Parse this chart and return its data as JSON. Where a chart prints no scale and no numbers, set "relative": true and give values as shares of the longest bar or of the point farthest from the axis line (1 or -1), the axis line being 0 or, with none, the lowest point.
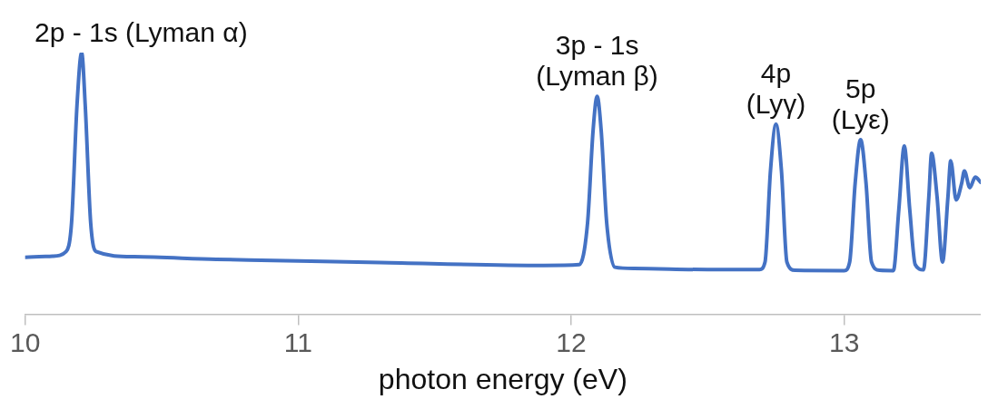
{
  "chart_data": {
    "type": "line",
    "relative": true,
    "xlabel": "photon energy (eV)",
    "xlim": [
      10,
      13.5
    ],
    "xticks": [
      10,
      11,
      12,
      13
    ],
    "grid": false,
    "legend": false,
    "marker": "none",
    "line_style": "solid",
    "series": [
      {
        "color": "#4472c4",
        "x": [
          10,
          10.1,
          10.15,
          10.17,
          10.19,
          10.207,
          10.22,
          10.24,
          10.26,
          10.4,
          10.7,
          10.91,
          11.3,
          11.9,
          12.03,
          12.06,
          12.08,
          12.095,
          12.11,
          12.13,
          12.16,
          12.23,
          12.5,
          12.69,
          12.71,
          12.73,
          12.75,
          12.77,
          12.79,
          12.82,
          13.0,
          13.02,
          13.04,
          13.06,
          13.08,
          13.1,
          13.13,
          13.18,
          13.2,
          13.22,
          13.24,
          13.26,
          13.29,
          13.31,
          13.32,
          13.34,
          13.36,
          13.38,
          13.39,
          13.41,
          13.43,
          13.44,
          13.46,
          13.48,
          13.5
        ],
        "values": [
          0.218,
          0.222,
          0.24,
          0.35,
          0.8,
          1.0,
          0.8,
          0.35,
          0.24,
          0.22,
          0.21,
          0.206,
          0.198,
          0.187,
          0.19,
          0.35,
          0.7,
          0.833,
          0.7,
          0.35,
          0.18,
          0.175,
          0.171,
          0.171,
          0.2,
          0.55,
          0.726,
          0.55,
          0.2,
          0.168,
          0.167,
          0.2,
          0.5,
          0.667,
          0.5,
          0.2,
          0.168,
          0.167,
          0.4,
          0.643,
          0.4,
          0.19,
          0.17,
          0.45,
          0.615,
          0.45,
          0.2,
          0.45,
          0.587,
          0.437,
          0.5,
          0.548,
          0.484,
          0.524,
          0.504
        ]
      }
    ],
    "annotations": [
      {
        "text": "2p - 1s (Lyman α)",
        "x": 10.207,
        "y": 1.0
      },
      {
        "text": "3p - 1s\n(Lyman β)",
        "x": 12.095,
        "y": 0.833
      },
      {
        "text": "4p\n(Lyγ)",
        "x": 12.75,
        "y": 0.726
      },
      {
        "text": "5p\n(Lyε)",
        "x": 13.06,
        "y": 0.667
      }
    ]
  }
}
